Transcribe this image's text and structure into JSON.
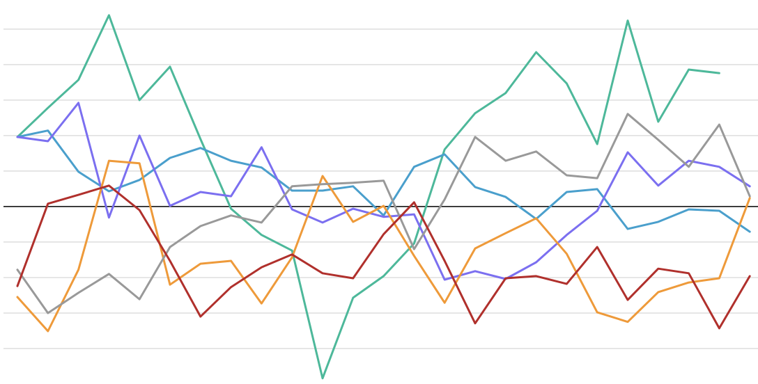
{
  "chart_data": {
    "type": "line",
    "x": [
      0,
      1,
      2,
      3,
      4,
      5,
      6,
      7,
      8,
      9,
      10,
      11,
      12,
      13,
      14,
      15,
      16,
      17,
      18,
      19,
      20,
      21,
      22,
      23,
      24
    ],
    "xlim": [
      -0.57,
      24.27
    ],
    "ylim": [
      -5,
      5.82
    ],
    "yticks": [
      -4,
      -3,
      -2,
      -1,
      0,
      1,
      2,
      3,
      4,
      5
    ],
    "grid": true,
    "zero_line": true,
    "series": [
      {
        "color": "#4db89a",
        "values": [
          1.96,
          2.78,
          3.57,
          5.39,
          3.0,
          3.94,
          1.9,
          -0.06,
          -0.8,
          -1.24,
          -4.84,
          -2.57,
          -1.96,
          -1.04,
          1.61,
          2.63,
          3.2,
          4.35,
          3.47,
          1.76,
          5.24,
          2.39,
          3.86,
          3.76,
          null
        ]
      },
      {
        "color": "#4a9fcc",
        "values": [
          1.96,
          2.14,
          0.98,
          0.43,
          0.75,
          1.37,
          1.65,
          1.29,
          1.1,
          0.45,
          0.45,
          0.57,
          -0.25,
          1.12,
          1.47,
          0.55,
          0.27,
          -0.35,
          0.41,
          0.49,
          -0.63,
          -0.43,
          -0.08,
          -0.12,
          -0.71
        ]
      },
      {
        "color": "#7b6ff0",
        "values": [
          1.96,
          1.84,
          2.92,
          -0.31,
          2.0,
          0.02,
          0.41,
          0.29,
          1.67,
          -0.08,
          -0.45,
          -0.06,
          -0.29,
          -0.22,
          -2.06,
          -1.82,
          -2.04,
          -1.57,
          -0.8,
          -0.12,
          1.53,
          0.59,
          1.29,
          1.12,
          0.57
        ]
      },
      {
        "color": "#ee9a3a",
        "values": [
          -2.55,
          -3.51,
          -1.78,
          1.29,
          1.22,
          -2.2,
          -1.61,
          -1.53,
          -2.73,
          -1.43,
          0.86,
          -0.43,
          0.02,
          -1.39,
          -2.71,
          -1.18,
          -0.75,
          -0.33,
          -1.33,
          -2.98,
          -3.25,
          -2.41,
          -2.14,
          -2.02,
          0.24
        ]
      },
      {
        "color": "#999999",
        "values": [
          -1.78,
          -3.0,
          -2.43,
          -1.9,
          -2.61,
          -1.14,
          -0.55,
          -0.25,
          -0.45,
          0.57,
          0.63,
          0.67,
          0.73,
          -1.2,
          0.2,
          1.96,
          1.29,
          1.55,
          0.88,
          0.8,
          2.61,
          1.88,
          1.12,
          2.31,
          0.29
        ]
      },
      {
        "color": "#b0302c",
        "values": [
          -2.24,
          0.08,
          0.33,
          0.59,
          -0.1,
          -1.53,
          -3.1,
          -2.27,
          -1.71,
          -1.35,
          -1.88,
          -2.02,
          -0.78,
          0.12,
          -1.53,
          -3.29,
          -2.02,
          -1.96,
          -2.18,
          -1.14,
          -2.63,
          -1.75,
          -1.88,
          -3.43,
          -1.96
        ]
      }
    ]
  }
}
